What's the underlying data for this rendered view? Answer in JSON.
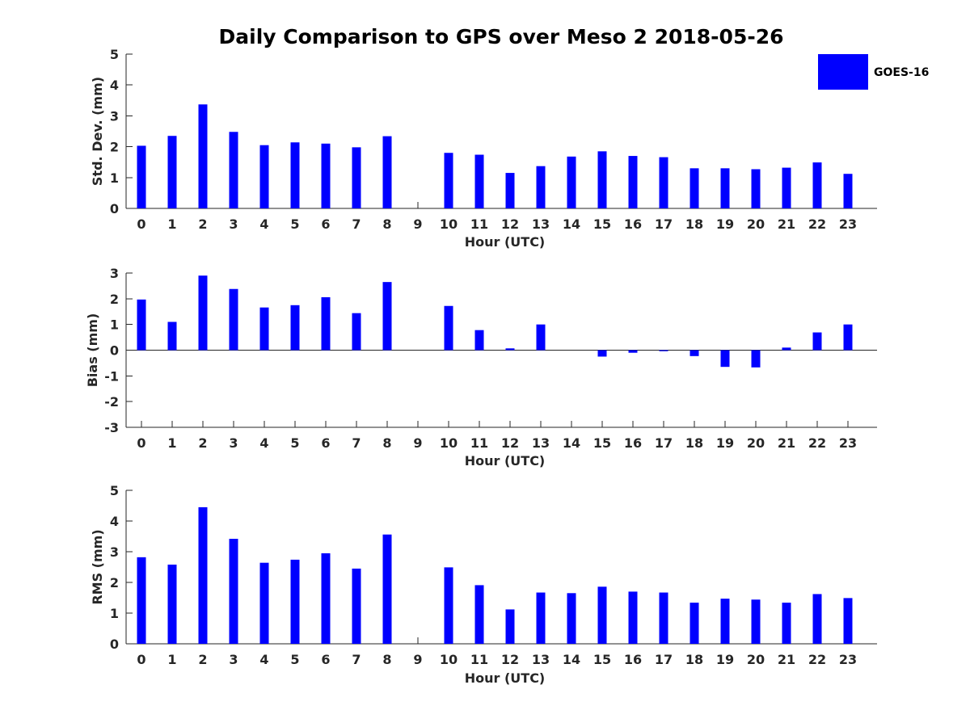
{
  "figure_title": "Daily Comparison to GPS over Meso 2 2018-05-26",
  "legend": {
    "label": "GOES-16",
    "color": "#0000ff"
  },
  "chart_data": [
    {
      "type": "bar",
      "title": "Daily Comparison to GPS over Meso 2 2018-05-26",
      "xlabel": "Hour (UTC)",
      "ylabel": "Std. Dev. (mm)",
      "ylim": [
        0,
        5
      ],
      "yticks": [
        0,
        1,
        2,
        3,
        4,
        5
      ],
      "categories": [
        "0",
        "1",
        "2",
        "3",
        "4",
        "5",
        "6",
        "7",
        "8",
        "9",
        "10",
        "11",
        "12",
        "13",
        "14",
        "15",
        "16",
        "17",
        "18",
        "19",
        "20",
        "21",
        "22",
        "23"
      ],
      "series": [
        {
          "name": "GOES-16",
          "color": "#0000ff",
          "values": [
            2.03,
            2.35,
            3.37,
            2.48,
            2.05,
            2.14,
            2.1,
            1.98,
            2.34,
            null,
            1.8,
            1.74,
            1.15,
            1.37,
            1.68,
            1.85,
            1.7,
            1.66,
            1.3,
            1.3,
            1.27,
            1.32,
            1.49,
            1.12
          ]
        }
      ]
    },
    {
      "type": "bar",
      "xlabel": "Hour (UTC)",
      "ylabel": "Bias (mm)",
      "ylim": [
        -3,
        3
      ],
      "yticks": [
        -3,
        -2,
        -1,
        0,
        1,
        2,
        3
      ],
      "categories": [
        "0",
        "1",
        "2",
        "3",
        "4",
        "5",
        "6",
        "7",
        "8",
        "9",
        "10",
        "11",
        "12",
        "13",
        "14",
        "15",
        "16",
        "17",
        "18",
        "19",
        "20",
        "21",
        "22",
        "23"
      ],
      "series": [
        {
          "name": "GOES-16",
          "color": "#0000ff",
          "values": [
            1.97,
            1.1,
            2.9,
            2.38,
            1.66,
            1.75,
            2.06,
            1.44,
            2.65,
            null,
            1.72,
            0.78,
            0.07,
            1.0,
            0.0,
            -0.25,
            -0.1,
            -0.04,
            -0.23,
            -0.65,
            -0.67,
            0.1,
            0.69,
            1.0
          ]
        }
      ]
    },
    {
      "type": "bar",
      "xlabel": "Hour (UTC)",
      "ylabel": "RMS (mm)",
      "ylim": [
        0,
        5
      ],
      "yticks": [
        0,
        1,
        2,
        3,
        4,
        5
      ],
      "categories": [
        "0",
        "1",
        "2",
        "3",
        "4",
        "5",
        "6",
        "7",
        "8",
        "9",
        "10",
        "11",
        "12",
        "13",
        "14",
        "15",
        "16",
        "17",
        "18",
        "19",
        "20",
        "21",
        "22",
        "23"
      ],
      "series": [
        {
          "name": "GOES-16",
          "color": "#0000ff",
          "values": [
            2.82,
            2.58,
            4.45,
            3.42,
            2.64,
            2.74,
            2.95,
            2.45,
            3.56,
            null,
            2.49,
            1.91,
            1.12,
            1.67,
            1.65,
            1.86,
            1.7,
            1.67,
            1.34,
            1.47,
            1.44,
            1.34,
            1.62,
            1.49
          ]
        }
      ]
    }
  ]
}
